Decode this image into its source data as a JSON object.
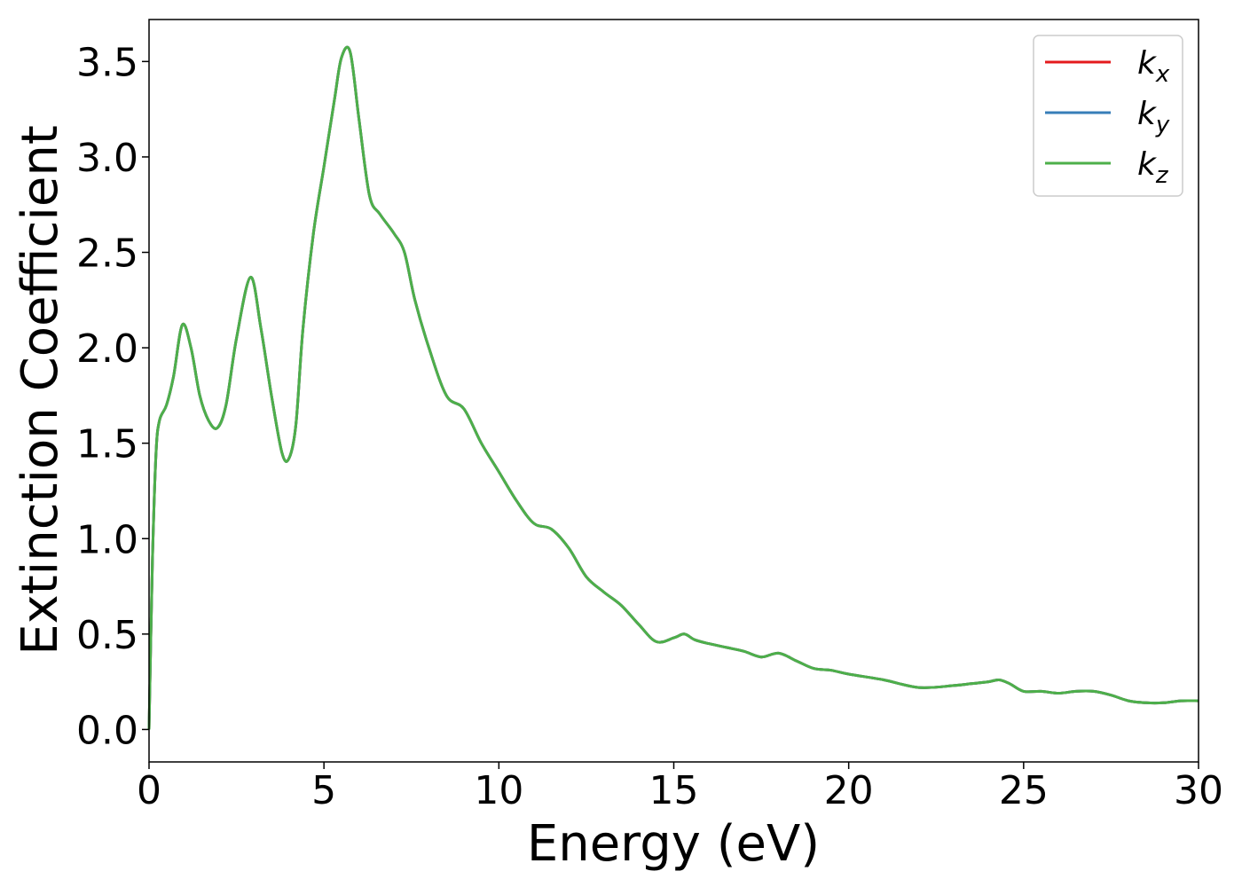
{
  "chart_data": {
    "type": "line",
    "title": "",
    "xlabel": "Energy (eV)",
    "ylabel": "Extinction Coefficient",
    "xlim": [
      0,
      30
    ],
    "ylim": [
      -0.17,
      3.72
    ],
    "xticks": [
      0,
      5,
      10,
      15,
      20,
      25,
      30
    ],
    "xtick_labels": [
      "0",
      "5",
      "10",
      "15",
      "20",
      "25",
      "30"
    ],
    "yticks": [
      0.0,
      0.5,
      1.0,
      1.5,
      2.0,
      2.5,
      3.0,
      3.5
    ],
    "ytick_labels": [
      "0.0",
      "0.5",
      "1.0",
      "1.5",
      "2.0",
      "2.5",
      "3.0",
      "3.5"
    ],
    "grid": false,
    "legend_position": "top-right",
    "x": [
      0,
      0.1,
      0.2,
      0.3,
      0.5,
      0.7,
      0.95,
      1.2,
      1.45,
      1.7,
      1.95,
      2.2,
      2.5,
      2.9,
      3.2,
      3.5,
      3.8,
      4.0,
      4.2,
      4.4,
      4.7,
      5.0,
      5.3,
      5.5,
      5.75,
      6.0,
      6.3,
      6.6,
      7.0,
      7.3,
      7.6,
      8.0,
      8.5,
      9.0,
      9.5,
      10.0,
      10.5,
      11.0,
      11.5,
      12.0,
      12.5,
      13.0,
      13.5,
      14.0,
      14.5,
      15.0,
      15.3,
      15.6,
      16.0,
      16.5,
      17.0,
      17.5,
      18.0,
      18.5,
      19.0,
      19.5,
      20.0,
      21.0,
      22.0,
      23.0,
      23.5,
      24.0,
      24.3,
      24.6,
      25.0,
      25.5,
      26.0,
      26.5,
      27.0,
      27.5,
      28.0,
      28.5,
      29.0,
      29.5,
      30.0
    ],
    "series": [
      {
        "name": "k_x",
        "label_main": "k",
        "label_sub": "x",
        "color": "#e41a1c",
        "values": [
          0.0,
          0.9,
          1.45,
          1.62,
          1.7,
          1.85,
          2.12,
          2.0,
          1.75,
          1.62,
          1.58,
          1.7,
          2.05,
          2.37,
          2.1,
          1.75,
          1.45,
          1.42,
          1.6,
          2.1,
          2.6,
          2.95,
          3.3,
          3.52,
          3.55,
          3.2,
          2.8,
          2.7,
          2.6,
          2.5,
          2.25,
          2.0,
          1.75,
          1.68,
          1.5,
          1.35,
          1.2,
          1.08,
          1.05,
          0.95,
          0.8,
          0.72,
          0.65,
          0.55,
          0.46,
          0.48,
          0.5,
          0.47,
          0.45,
          0.43,
          0.41,
          0.38,
          0.4,
          0.36,
          0.32,
          0.31,
          0.29,
          0.26,
          0.22,
          0.23,
          0.24,
          0.25,
          0.26,
          0.24,
          0.2,
          0.2,
          0.19,
          0.2,
          0.2,
          0.18,
          0.15,
          0.14,
          0.14,
          0.15,
          0.15
        ]
      },
      {
        "name": "k_y",
        "label_main": "k",
        "label_sub": "y",
        "color": "#377eb8",
        "values": [
          0.0,
          0.9,
          1.45,
          1.62,
          1.7,
          1.85,
          2.12,
          2.0,
          1.75,
          1.62,
          1.58,
          1.7,
          2.05,
          2.37,
          2.1,
          1.75,
          1.45,
          1.42,
          1.6,
          2.1,
          2.6,
          2.95,
          3.3,
          3.52,
          3.55,
          3.2,
          2.8,
          2.7,
          2.6,
          2.5,
          2.25,
          2.0,
          1.75,
          1.68,
          1.5,
          1.35,
          1.2,
          1.08,
          1.05,
          0.95,
          0.8,
          0.72,
          0.65,
          0.55,
          0.46,
          0.48,
          0.5,
          0.47,
          0.45,
          0.43,
          0.41,
          0.38,
          0.4,
          0.36,
          0.32,
          0.31,
          0.29,
          0.26,
          0.22,
          0.23,
          0.24,
          0.25,
          0.26,
          0.24,
          0.2,
          0.2,
          0.19,
          0.2,
          0.2,
          0.18,
          0.15,
          0.14,
          0.14,
          0.15,
          0.15
        ]
      },
      {
        "name": "k_z",
        "label_main": "k",
        "label_sub": "z",
        "color": "#4daf4a",
        "values": [
          0.0,
          0.9,
          1.45,
          1.62,
          1.7,
          1.85,
          2.12,
          2.0,
          1.75,
          1.62,
          1.58,
          1.7,
          2.05,
          2.37,
          2.1,
          1.75,
          1.45,
          1.42,
          1.6,
          2.1,
          2.6,
          2.95,
          3.3,
          3.52,
          3.55,
          3.2,
          2.8,
          2.7,
          2.6,
          2.5,
          2.25,
          2.0,
          1.75,
          1.68,
          1.5,
          1.35,
          1.2,
          1.08,
          1.05,
          0.95,
          0.8,
          0.72,
          0.65,
          0.55,
          0.46,
          0.48,
          0.5,
          0.47,
          0.45,
          0.43,
          0.41,
          0.38,
          0.4,
          0.36,
          0.32,
          0.31,
          0.29,
          0.26,
          0.22,
          0.23,
          0.24,
          0.25,
          0.26,
          0.24,
          0.2,
          0.2,
          0.19,
          0.2,
          0.2,
          0.18,
          0.15,
          0.14,
          0.14,
          0.15,
          0.15
        ]
      }
    ]
  }
}
